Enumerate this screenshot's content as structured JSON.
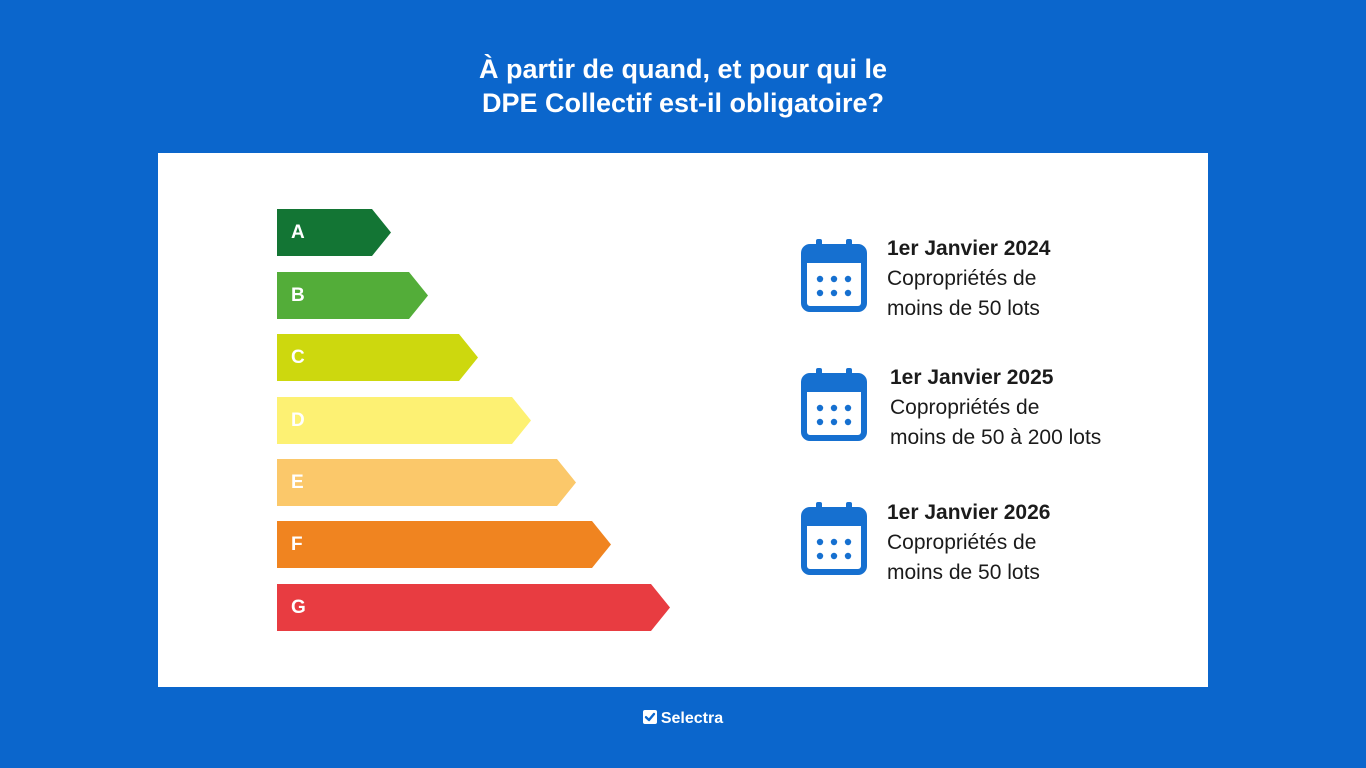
{
  "title": {
    "line1": "À partir de quand, et pour qui le",
    "line2": "DPE Collectif est-il obligatoire?"
  },
  "energy_labels": [
    {
      "letter": "A",
      "color": "#137534"
    },
    {
      "letter": "B",
      "color": "#53ad39"
    },
    {
      "letter": "C",
      "color": "#cdd80e"
    },
    {
      "letter": "D",
      "color": "#fdf173"
    },
    {
      "letter": "E",
      "color": "#fbc86a"
    },
    {
      "letter": "F",
      "color": "#f08420"
    },
    {
      "letter": "G",
      "color": "#e83c41"
    }
  ],
  "entries": [
    {
      "date": "1er Janvier 2024",
      "line1": "Copropriétés de",
      "line2": "moins de 50 lots",
      "icon": "calendar-icon"
    },
    {
      "date": "1er Janvier 2025",
      "line1": "Copropriétés de",
      "line2": "moins de 50 à 200 lots",
      "icon": "calendar-icon"
    },
    {
      "date": "1er Janvier 2026",
      "line1": "Copropriétés de",
      "line2": "moins de 50 lots",
      "icon": "calendar-icon"
    }
  ],
  "footer": {
    "brand": "Selectra",
    "icon": "check-icon"
  },
  "colors": {
    "background": "#0b66cc",
    "card": "#ffffff",
    "icon": "#1670d0"
  }
}
